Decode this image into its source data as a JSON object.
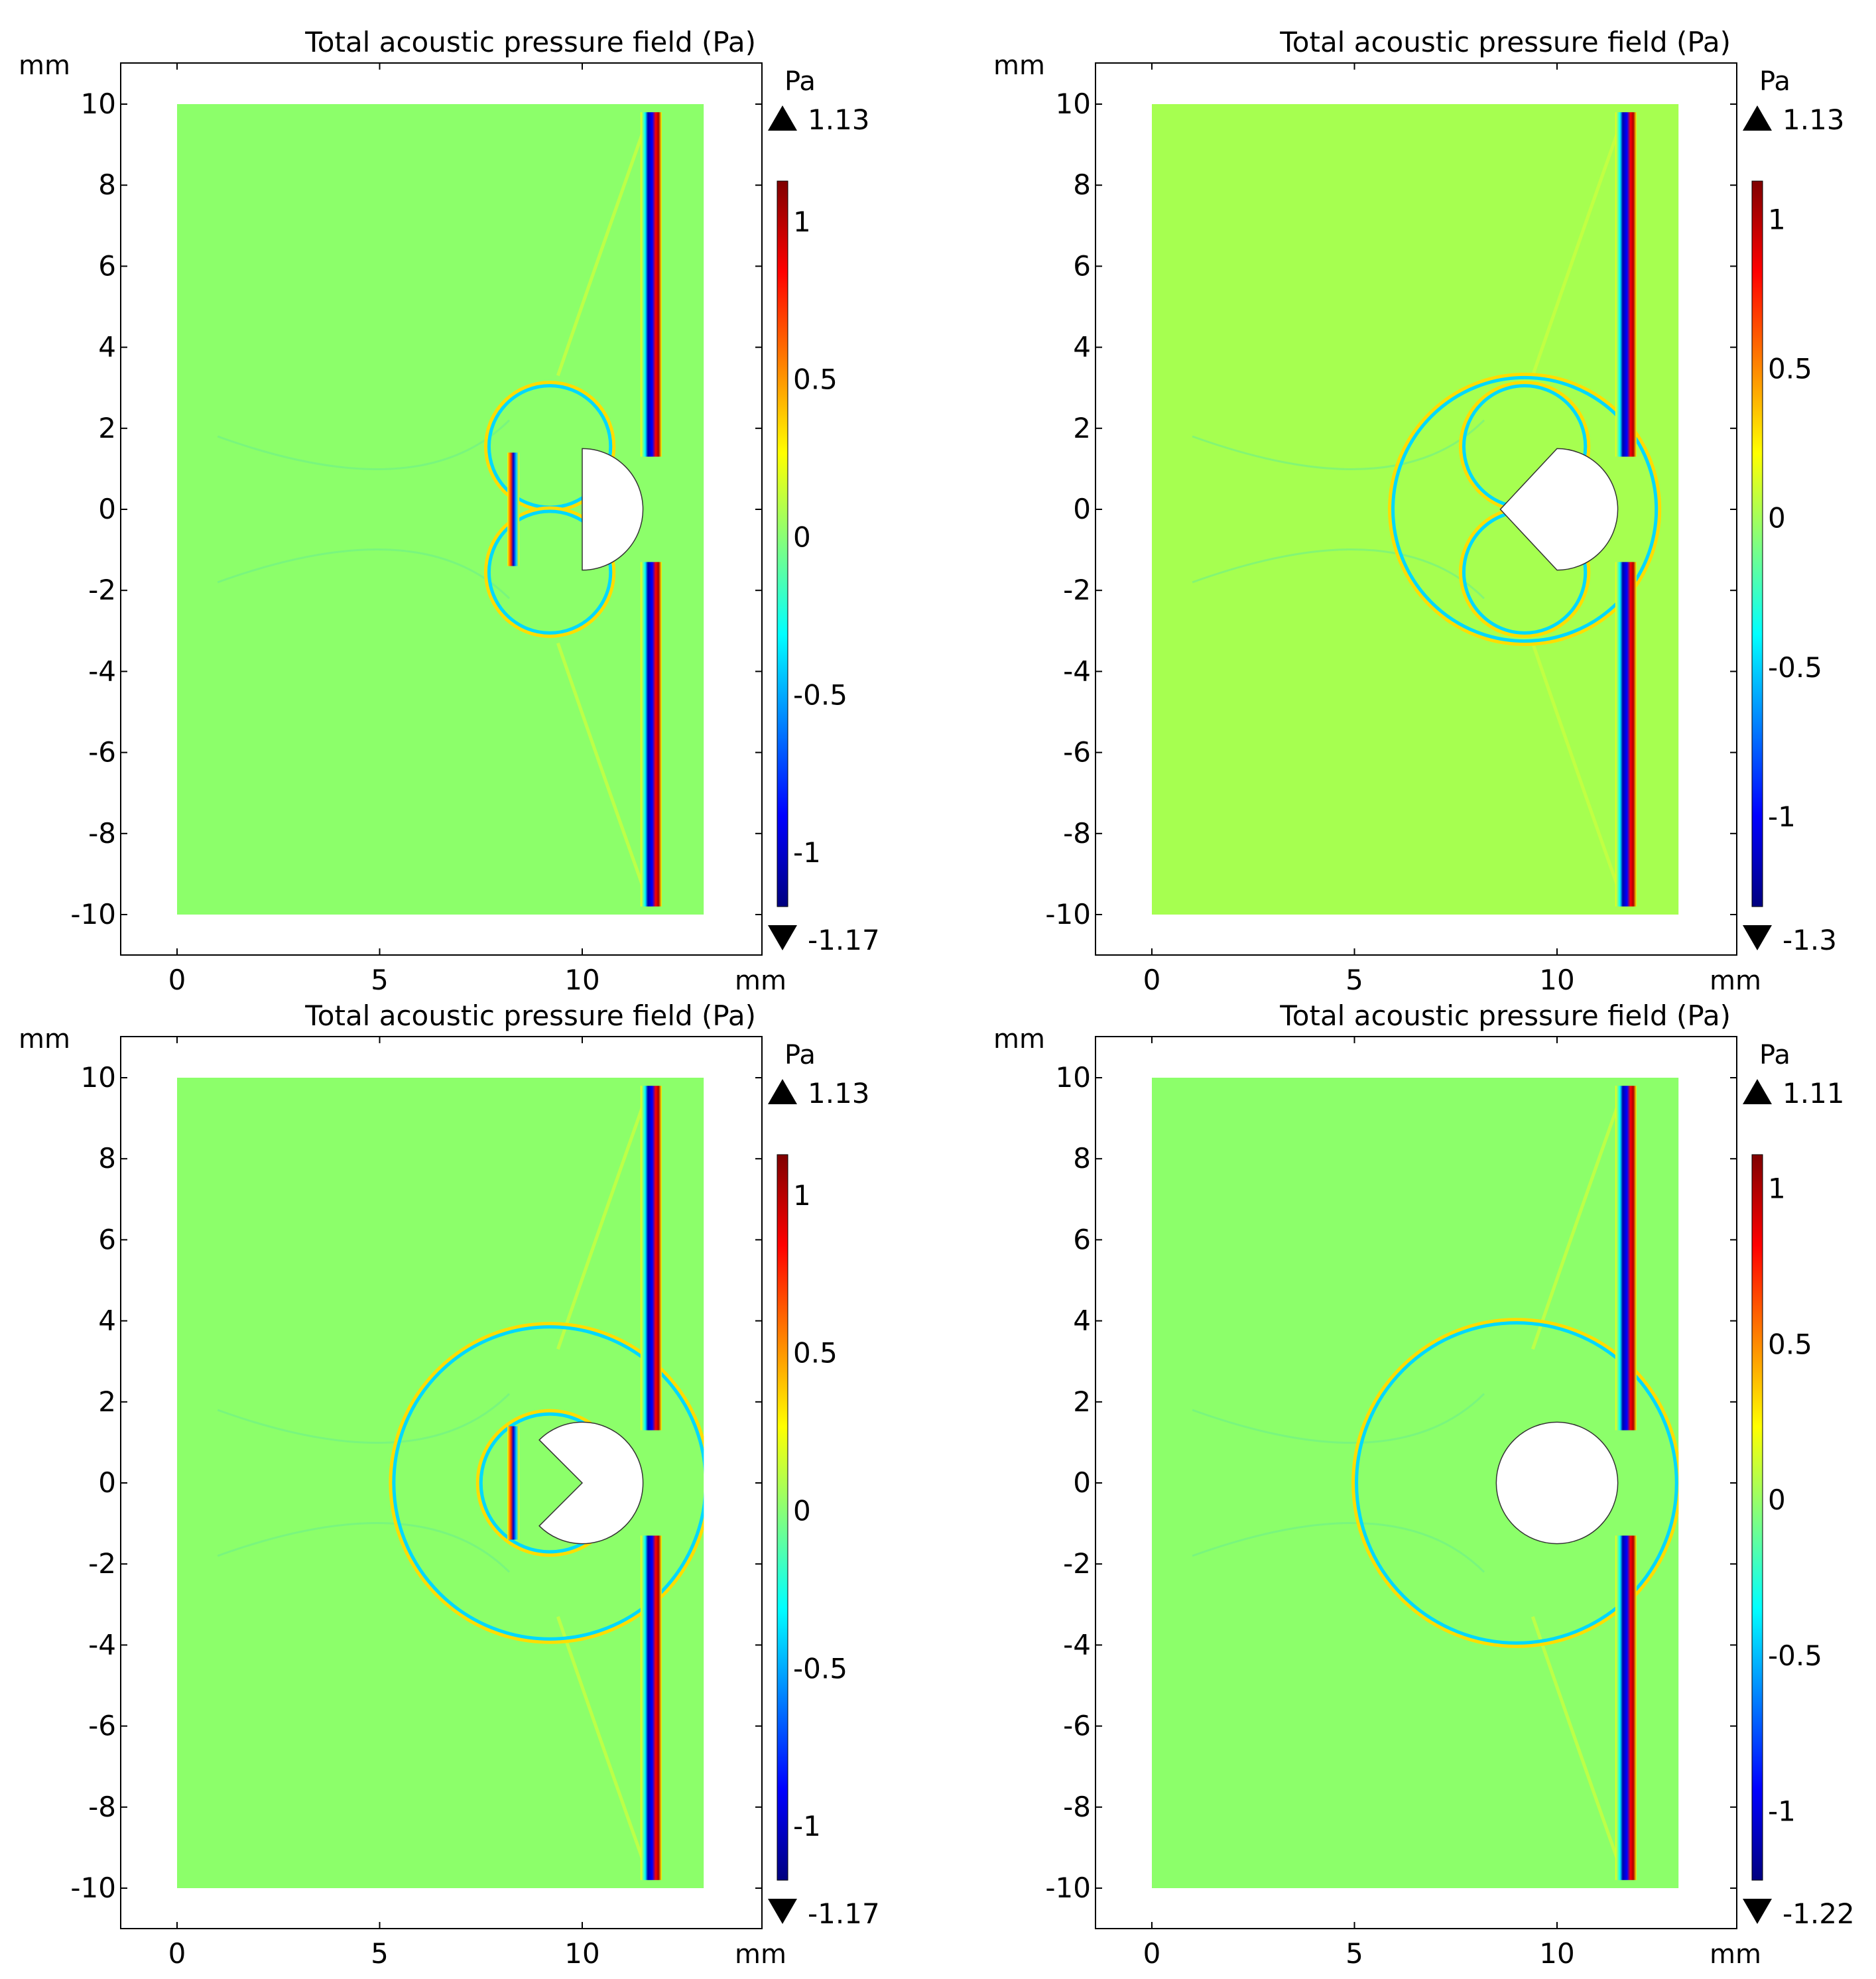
{
  "figure": {
    "panel_count": 4,
    "layout": "2x2"
  },
  "chart_data": [
    {
      "type": "heatmap",
      "title": "Total acoustic pressure field (Pa)",
      "xlabel": "mm",
      "ylabel": "mm",
      "xlim": [
        -1.4,
        14.4
      ],
      "ylim": [
        -11,
        11
      ],
      "domain": {
        "x": [
          0,
          13
        ],
        "y": [
          -10,
          10
        ]
      },
      "x_ticks": [
        0,
        5,
        10
      ],
      "y_ticks": [
        10,
        8,
        6,
        4,
        2,
        0,
        -2,
        -4,
        -6,
        -8,
        -10
      ],
      "colorbar": {
        "unit": "Pa",
        "max": 1.13,
        "min": -1.17,
        "ticks": [
          1,
          0.5,
          0,
          -0.5,
          -1
        ],
        "colormap": "jet"
      },
      "background_color": "#8cff6a",
      "obstacle": {
        "shape": "half-disk",
        "center": [
          10,
          0
        ],
        "radius": 1.5
      },
      "features": {
        "incident_wavefront_x": 11.7,
        "reflected_wavefront_x": 8.3,
        "scattered_rings": [
          {
            "cx": 9.2,
            "cy": 1.55,
            "r": 1.5
          },
          {
            "cx": 9.2,
            "cy": -1.55,
            "r": 1.5
          }
        ],
        "faint_arcs": true
      }
    },
    {
      "type": "heatmap",
      "title": "Total acoustic pressure field (Pa)",
      "xlabel": "mm",
      "ylabel": "mm",
      "xlim": [
        -1.4,
        14.4
      ],
      "ylim": [
        -11,
        11
      ],
      "domain": {
        "x": [
          0,
          13
        ],
        "y": [
          -10,
          10
        ]
      },
      "x_ticks": [
        0,
        5,
        10
      ],
      "y_ticks": [
        10,
        8,
        6,
        4,
        2,
        0,
        -2,
        -4,
        -6,
        -8,
        -10
      ],
      "colorbar": {
        "unit": "Pa",
        "max": 1.13,
        "min": -1.3,
        "ticks": [
          1,
          0.5,
          0,
          -0.5,
          -1
        ],
        "colormap": "jet"
      },
      "background_color": "#a6ff50",
      "obstacle": {
        "shape": "disk-with-wedge",
        "center": [
          10,
          0
        ],
        "radius": 1.5,
        "apex_x": 8.6
      },
      "features": {
        "incident_wavefront_x": 11.7,
        "scattered_rings": [
          {
            "cx": 9.2,
            "cy": 0,
            "r": 3.25
          },
          {
            "cx": 9.2,
            "cy": 1.55,
            "r": 1.5
          },
          {
            "cx": 9.2,
            "cy": -1.55,
            "r": 1.5
          }
        ],
        "faint_arcs": true
      }
    },
    {
      "type": "heatmap",
      "title": "Total acoustic pressure field (Pa)",
      "xlabel": "mm",
      "ylabel": "mm",
      "xlim": [
        -1.4,
        14.4
      ],
      "ylim": [
        -11,
        11
      ],
      "domain": {
        "x": [
          0,
          13
        ],
        "y": [
          -10,
          10
        ]
      },
      "x_ticks": [
        0,
        5,
        10
      ],
      "y_ticks": [
        10,
        8,
        6,
        4,
        2,
        0,
        -2,
        -4,
        -6,
        -8,
        -10
      ],
      "colorbar": {
        "unit": "Pa",
        "max": 1.13,
        "min": -1.17,
        "ticks": [
          1,
          0.5,
          0,
          -0.5,
          -1
        ],
        "colormap": "jet"
      },
      "background_color": "#8cff6a",
      "obstacle": {
        "shape": "disk-with-notch",
        "center": [
          10,
          0
        ],
        "radius": 1.5,
        "notch_depth": 1.0
      },
      "features": {
        "incident_wavefront_x": 11.7,
        "reflected_wavefront_x": 8.3,
        "scattered_rings": [
          {
            "cx": 9.2,
            "cy": 0,
            "r": 3.85
          },
          {
            "cx": 9.2,
            "cy": 0,
            "r": 1.7
          }
        ],
        "faint_arcs": true
      }
    },
    {
      "type": "heatmap",
      "title": "Total acoustic pressure field (Pa)",
      "xlabel": "mm",
      "ylabel": "mm",
      "xlim": [
        -1.4,
        14.4
      ],
      "ylim": [
        -11,
        11
      ],
      "domain": {
        "x": [
          0,
          13
        ],
        "y": [
          -10,
          10
        ]
      },
      "x_ticks": [
        0,
        5,
        10
      ],
      "y_ticks": [
        10,
        8,
        6,
        4,
        2,
        0,
        -2,
        -4,
        -6,
        -8,
        -10
      ],
      "colorbar": {
        "unit": "Pa",
        "max": 1.11,
        "min": -1.22,
        "ticks": [
          1,
          0.5,
          0,
          -0.5,
          -1
        ],
        "colormap": "jet"
      },
      "background_color": "#8cff6a",
      "obstacle": {
        "shape": "disk",
        "center": [
          10,
          0
        ],
        "radius": 1.5
      },
      "features": {
        "incident_wavefront_x": 11.7,
        "scattered_rings": [
          {
            "cx": 9.0,
            "cy": 0,
            "r": 3.95
          }
        ],
        "faint_arcs": true
      }
    }
  ]
}
